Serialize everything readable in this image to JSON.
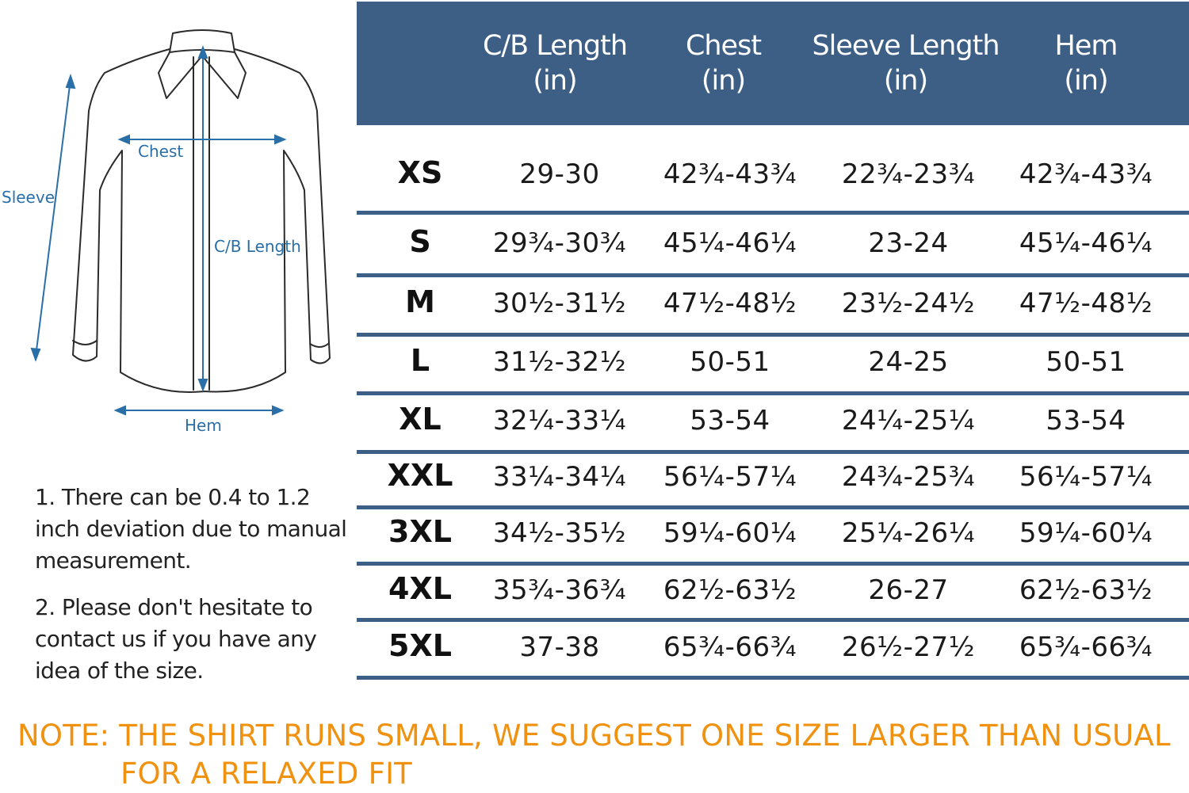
{
  "diagram": {
    "labels": {
      "sleeve": "Sleeve",
      "chest": "Chest",
      "cb_length": "C/B Length",
      "hem": "Hem"
    },
    "line_color": "#2a6fa8"
  },
  "notes": [
    "1. There can be 0.4 to 1.2 inch deviation due to manual measurement.",
    "2. Please don't hesitate to contact us if you have any idea of the size."
  ],
  "table": {
    "header_color": "#3d5f86",
    "columns": [
      {
        "name": "C/B Length",
        "unit": "(in)"
      },
      {
        "name": "Chest",
        "unit": "(in)"
      },
      {
        "name": "Sleeve Length",
        "unit": "(in)"
      },
      {
        "name": "Hem",
        "unit": "(in)"
      }
    ],
    "rows": [
      {
        "size": "XS",
        "values": [
          "29-30",
          "42¾-43¾",
          "22¾-23¾",
          "42¾-43¾"
        ]
      },
      {
        "size": "S",
        "values": [
          "29¾-30¾",
          "45¼-46¼",
          "23-24",
          "45¼-46¼"
        ]
      },
      {
        "size": "M",
        "values": [
          "30½-31½",
          "47½-48½",
          "23½-24½",
          "47½-48½"
        ]
      },
      {
        "size": "L",
        "values": [
          "31½-32½",
          "50-51",
          "24-25",
          "50-51"
        ]
      },
      {
        "size": "XL",
        "values": [
          "32¼-33¼",
          "53-54",
          "24¼-25¼",
          "53-54"
        ]
      },
      {
        "size": "XXL",
        "values": [
          "33¼-34¼",
          "56¼-57¼",
          "24¾-25¾",
          "56¼-57¼"
        ]
      },
      {
        "size": "3XL",
        "values": [
          "34½-35½",
          "59¼-60¼",
          "25¼-26¼",
          "59¼-60¼"
        ]
      },
      {
        "size": "4XL",
        "values": [
          "35¾-36¾",
          "62½-63½",
          "26-27",
          "62½-63½"
        ]
      },
      {
        "size": "5XL",
        "values": [
          "37-38",
          "65¾-66¾",
          "26½-27½",
          "65¾-66¾"
        ]
      }
    ]
  },
  "bottom_note": {
    "line1": "NOTE: THE SHIRT RUNS SMALL, WE SUGGEST ONE SIZE LARGER THAN USUAL",
    "line2": "FOR A RELAXED FIT",
    "color": "#f0920f"
  }
}
